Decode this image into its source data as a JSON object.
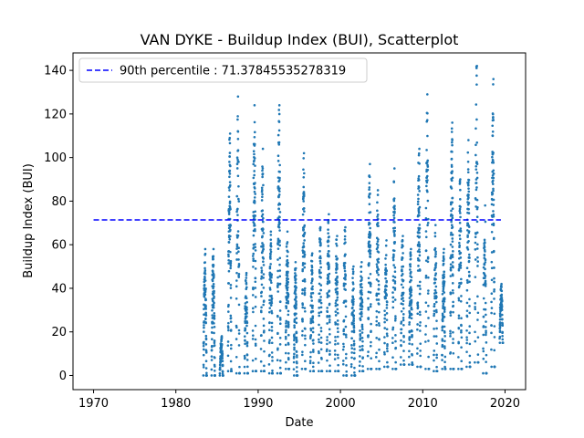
{
  "chart_data": {
    "type": "scatter",
    "title": "VAN DYKE - Buildup Index (BUI), Scatterplot",
    "xlabel": "Date",
    "ylabel": "Buildup Index (BUI)",
    "xlim": [
      1967.5,
      2022.5
    ],
    "ylim": [
      -6.5,
      148
    ],
    "x_ticks": [
      1970,
      1980,
      1990,
      2000,
      2010,
      2020
    ],
    "y_ticks": [
      0,
      20,
      40,
      60,
      80,
      100,
      120,
      140
    ],
    "point_color": "#1f77b4",
    "reference_line": {
      "label": "90th percentile : 71.37845535278319",
      "value": 71.37845535278319,
      "x_range": [
        1970,
        2019.5
      ],
      "color": "#0000ff",
      "style": "dashed"
    },
    "legend_placement": "top-left",
    "seasons": [
      {
        "year": 1983,
        "max": 58,
        "min": 0
      },
      {
        "year": 1984,
        "max": 58,
        "min": 0
      },
      {
        "year": 1985,
        "max": 18,
        "min": 0
      },
      {
        "year": 1986,
        "max": 111,
        "min": 2
      },
      {
        "year": 1987,
        "max": 128,
        "min": 1
      },
      {
        "year": 1988,
        "max": 47,
        "min": 1
      },
      {
        "year": 1989,
        "max": 124,
        "min": 2
      },
      {
        "year": 1990,
        "max": 104,
        "min": 2
      },
      {
        "year": 1991,
        "max": 66,
        "min": 1
      },
      {
        "year": 1992,
        "max": 124,
        "min": 1
      },
      {
        "year": 1993,
        "max": 66,
        "min": 3
      },
      {
        "year": 1994,
        "max": 52,
        "min": 0
      },
      {
        "year": 1995,
        "max": 102,
        "min": 3
      },
      {
        "year": 1996,
        "max": 56,
        "min": 2
      },
      {
        "year": 1997,
        "max": 68,
        "min": 2
      },
      {
        "year": 1998,
        "max": 74,
        "min": 2
      },
      {
        "year": 1999,
        "max": 64,
        "min": 2
      },
      {
        "year": 2000,
        "max": 68,
        "min": 0
      },
      {
        "year": 2001,
        "max": 50,
        "min": 0
      },
      {
        "year": 2002,
        "max": 52,
        "min": 2
      },
      {
        "year": 2003,
        "max": 97,
        "min": 3
      },
      {
        "year": 2004,
        "max": 85,
        "min": 3
      },
      {
        "year": 2005,
        "max": 62,
        "min": 4
      },
      {
        "year": 2006,
        "max": 95,
        "min": 3
      },
      {
        "year": 2007,
        "max": 64,
        "min": 5
      },
      {
        "year": 2008,
        "max": 58,
        "min": 5
      },
      {
        "year": 2009,
        "max": 104,
        "min": 4
      },
      {
        "year": 2010,
        "max": 129,
        "min": 3
      },
      {
        "year": 2011,
        "max": 69,
        "min": 2
      },
      {
        "year": 2012,
        "max": 58,
        "min": 3
      },
      {
        "year": 2013,
        "max": 116,
        "min": 3
      },
      {
        "year": 2014,
        "max": 90,
        "min": 3
      },
      {
        "year": 2015,
        "max": 108,
        "min": 4
      },
      {
        "year": 2016,
        "max": 142,
        "min": 6
      },
      {
        "year": 2017,
        "max": 78,
        "min": 1
      },
      {
        "year": 2018,
        "max": 136,
        "min": 4
      },
      {
        "year": 2019,
        "max": 42,
        "min": 15
      }
    ]
  }
}
